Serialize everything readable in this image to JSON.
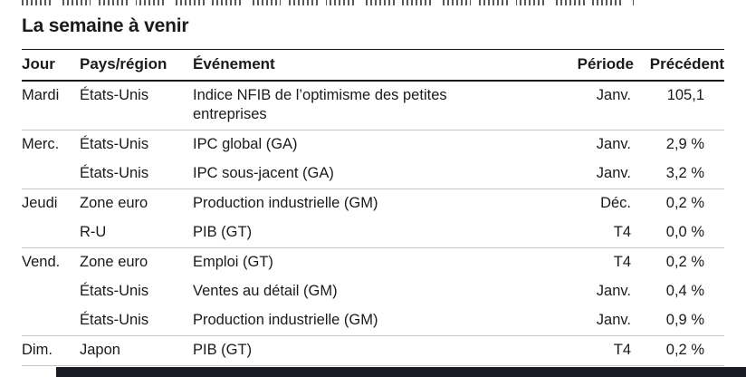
{
  "document": {
    "title": "La semaine à venir"
  },
  "table": {
    "columns": [
      "Jour",
      "Pays/région",
      "Événement",
      "Période",
      "Précédent"
    ],
    "rows": [
      {
        "jour": "Mardi",
        "pays": "États-Unis",
        "evenement": "Indice NFIB de l’optimisme des petites entreprises",
        "periode": "Janv.",
        "precedent": "105,1"
      },
      {
        "jour": "Merc.",
        "pays": "États-Unis",
        "evenement": "IPC global (GA)",
        "periode": "Janv.",
        "precedent": "2,9 %"
      },
      {
        "jour": "",
        "pays": "États-Unis",
        "evenement": "IPC sous-jacent (GA)",
        "periode": "Janv.",
        "precedent": "3,2 %"
      },
      {
        "jour": "Jeudi",
        "pays": "Zone euro",
        "evenement": "Production industrielle (GM)",
        "periode": "Déc.",
        "precedent": "0,2 %"
      },
      {
        "jour": "",
        "pays": "R-U",
        "evenement": "PIB (GT)",
        "periode": "T4",
        "precedent": "0,0 %"
      },
      {
        "jour": "Vend.",
        "pays": "Zone euro",
        "evenement": "Emploi (GT)",
        "periode": "T4",
        "precedent": "0,2 %"
      },
      {
        "jour": "",
        "pays": "États-Unis",
        "evenement": "Ventes au détail (GM)",
        "periode": "Janv.",
        "precedent": "0,4 %"
      },
      {
        "jour": "",
        "pays": "États-Unis",
        "evenement": "Production industrielle (GM)",
        "periode": "Janv.",
        "precedent": "0,9 %"
      },
      {
        "jour": "Dim.",
        "pays": "Japon",
        "evenement": "PIB (GT)",
        "periode": "T4",
        "precedent": "0,2 %"
      }
    ]
  },
  "colors": {
    "text": "#1a1a1a",
    "rule_strong": "#161616",
    "rule_light": "#c6c6c6",
    "footer_bar": "#191a23"
  }
}
